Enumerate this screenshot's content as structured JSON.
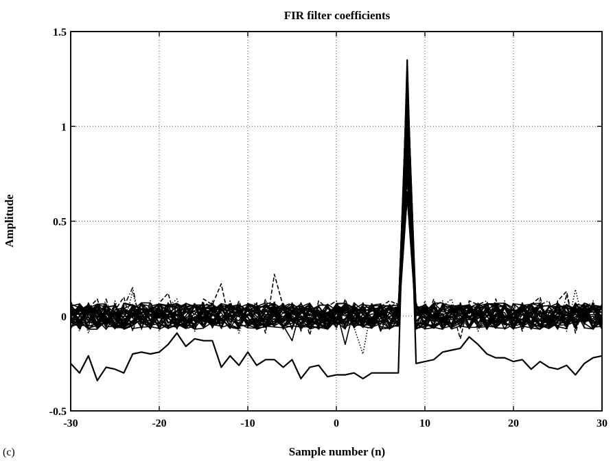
{
  "chart_data": {
    "type": "line",
    "title": "FIR filter coefficients",
    "xlabel": "Sample number (n)",
    "ylabel": "Amplitude",
    "panel_label": "(c)",
    "xlim": [
      -30,
      30
    ],
    "ylim": [
      -0.5,
      1.5
    ],
    "grid": true,
    "xticks": [
      -30,
      -20,
      -10,
      0,
      10,
      20,
      30
    ],
    "xtick_labels": [
      "-30",
      "-20",
      "-10",
      "0",
      "10",
      "20",
      "30"
    ],
    "yticks": [
      -0.5,
      0,
      0.5,
      1,
      1.5
    ],
    "ytick_labels": [
      "-0.5",
      "0",
      "0.5",
      "1",
      "1.5"
    ],
    "n": [
      -30,
      -29,
      -28,
      -27,
      -26,
      -25,
      -24,
      -23,
      -22,
      -21,
      -20,
      -19,
      -18,
      -17,
      -16,
      -15,
      -14,
      -13,
      -12,
      -11,
      -10,
      -9,
      -8,
      -7,
      -6,
      -5,
      -4,
      -3,
      -2,
      -1,
      0,
      1,
      2,
      3,
      4,
      5,
      6,
      7,
      8,
      9,
      10,
      11,
      12,
      13,
      14,
      15,
      16,
      17,
      18,
      19,
      20,
      21,
      22,
      23,
      24,
      25,
      26,
      27,
      28,
      29,
      30
    ],
    "noise_band": {
      "center": 0.0,
      "typical_spread": 0.07
    },
    "series": [
      {
        "style": "solid",
        "values": [
          -0.25,
          -0.3,
          -0.21,
          -0.34,
          -0.27,
          -0.28,
          -0.3,
          -0.2,
          -0.19,
          -0.2,
          -0.19,
          -0.15,
          -0.09,
          -0.16,
          -0.12,
          -0.13,
          -0.13,
          -0.27,
          -0.21,
          -0.26,
          -0.19,
          -0.26,
          -0.23,
          -0.23,
          -0.27,
          -0.23,
          -0.33,
          -0.27,
          -0.26,
          -0.32,
          -0.31,
          -0.31,
          -0.3,
          -0.33,
          -0.3,
          -0.3,
          -0.3,
          -0.3,
          1.35,
          -0.25,
          -0.24,
          -0.23,
          -0.19,
          -0.18,
          -0.17,
          -0.11,
          -0.15,
          -0.2,
          -0.22,
          -0.22,
          -0.24,
          -0.23,
          -0.28,
          -0.24,
          -0.27,
          -0.28,
          -0.26,
          -0.31,
          -0.25,
          -0.22,
          -0.21
        ]
      },
      {
        "style": "solid",
        "values": [
          0.03,
          -0.05,
          0.06,
          0.02,
          -0.06,
          0.05,
          0.01,
          -0.04,
          0.07,
          -0.02,
          0.04,
          -0.06,
          0.03,
          0.06,
          -0.03,
          0.02,
          -0.05,
          0.06,
          0.0,
          -0.04,
          0.05,
          -0.06,
          0.03,
          0.01,
          -0.05,
          -0.13,
          0.04,
          -0.06,
          0.05,
          -0.02,
          0.03,
          -0.15,
          0.04,
          -0.05,
          0.06,
          -0.08,
          0.02,
          0.05,
          1.02,
          0.03,
          -0.05,
          0.06,
          -0.02,
          0.04,
          -0.06,
          0.05,
          0.01,
          -0.04,
          0.06,
          -0.03,
          0.04,
          -0.05,
          0.03,
          0.06,
          -0.04,
          0.02,
          -0.06,
          0.05,
          -0.02,
          0.04,
          -0.03
        ]
      },
      {
        "style": "solid",
        "values": [
          -0.04,
          0.05,
          -0.03,
          0.06,
          0.02,
          -0.05,
          0.04,
          0.06,
          -0.06,
          0.03,
          -0.04,
          0.05,
          -0.02,
          -0.05,
          0.06,
          -0.03,
          0.04,
          -0.02,
          0.05,
          0.06,
          -0.05,
          0.03,
          -0.06,
          0.04,
          0.06,
          -0.03,
          -0.05,
          0.05,
          -0.04,
          0.06,
          -0.06,
          0.04,
          -0.03,
          0.05,
          -0.06,
          0.03,
          -0.04,
          0.06,
          0.85,
          -0.05,
          0.04,
          -0.03,
          0.06,
          -0.05,
          0.03,
          -0.06,
          0.05,
          0.04,
          -0.05,
          0.06,
          -0.02,
          0.05,
          -0.06,
          0.03,
          -0.04,
          0.06,
          0.04,
          -0.05,
          0.06,
          -0.03,
          0.05
        ]
      },
      {
        "style": "dashed",
        "values": [
          0.08,
          -0.06,
          0.04,
          0.09,
          -0.05,
          0.03,
          0.1,
          -0.08,
          0.06,
          -0.03,
          0.07,
          0.12,
          -0.04,
          0.05,
          -0.07,
          0.09,
          0.06,
          0.17,
          -0.05,
          0.08,
          -0.06,
          0.07,
          -0.09,
          0.22,
          0.05,
          -0.07,
          0.06,
          -0.1,
          0.08,
          0.04,
          -0.06,
          0.09,
          -0.05,
          0.07,
          -0.04,
          0.05,
          0.08,
          0.06,
          0.68,
          0.07,
          -0.05,
          0.09,
          -0.06,
          0.04,
          -0.12,
          0.08,
          0.06,
          -0.07,
          0.09,
          -0.05,
          0.07,
          -0.08,
          0.06,
          0.1,
          -0.06,
          0.08,
          0.13,
          -0.09,
          0.07,
          0.05,
          -0.06
        ]
      },
      {
        "style": "dotted",
        "values": [
          -0.07,
          0.06,
          -0.09,
          0.05,
          -0.06,
          0.08,
          -0.05,
          0.13,
          -0.07,
          0.06,
          -0.08,
          0.05,
          0.09,
          -0.06,
          0.07,
          -0.05,
          0.08,
          -0.07,
          0.06,
          -0.09,
          0.05,
          0.07,
          -0.06,
          0.08,
          -0.05,
          0.06,
          -0.08,
          0.07,
          -0.06,
          0.05,
          -0.07,
          0.08,
          -0.06,
          -0.2,
          0.05,
          -0.08,
          0.06,
          0.04,
          0.75,
          -0.06,
          0.08,
          -0.07,
          0.05,
          0.09,
          -0.06,
          0.07,
          -0.08,
          0.05,
          -0.06,
          0.08,
          -0.07,
          0.06,
          -0.05,
          0.09,
          -0.06,
          0.07,
          -0.08,
          0.14,
          -0.06,
          0.08,
          -0.07
        ]
      },
      {
        "style": "dashdot",
        "values": [
          0.06,
          -0.08,
          0.07,
          -0.05,
          0.09,
          -0.06,
          0.05,
          0.15,
          -0.07,
          0.08,
          -0.06,
          0.07,
          -0.05,
          0.06,
          -0.08,
          0.07,
          0.05,
          -0.06,
          0.08,
          -0.05,
          0.06,
          -0.07,
          0.09,
          -0.06,
          0.05,
          0.07,
          -0.08,
          0.06,
          -0.07,
          0.05,
          0.08,
          -0.06,
          0.07,
          -0.05,
          0.06,
          -0.07,
          0.05,
          0.07,
          0.92,
          0.06,
          -0.07,
          0.05,
          0.08,
          -0.06,
          0.07,
          -0.05,
          0.06,
          0.08,
          -0.07,
          0.05,
          -0.06,
          0.07,
          -0.05,
          0.06,
          0.08,
          -0.07,
          0.11,
          -0.06,
          0.05,
          0.07,
          -0.08
        ]
      }
    ]
  }
}
